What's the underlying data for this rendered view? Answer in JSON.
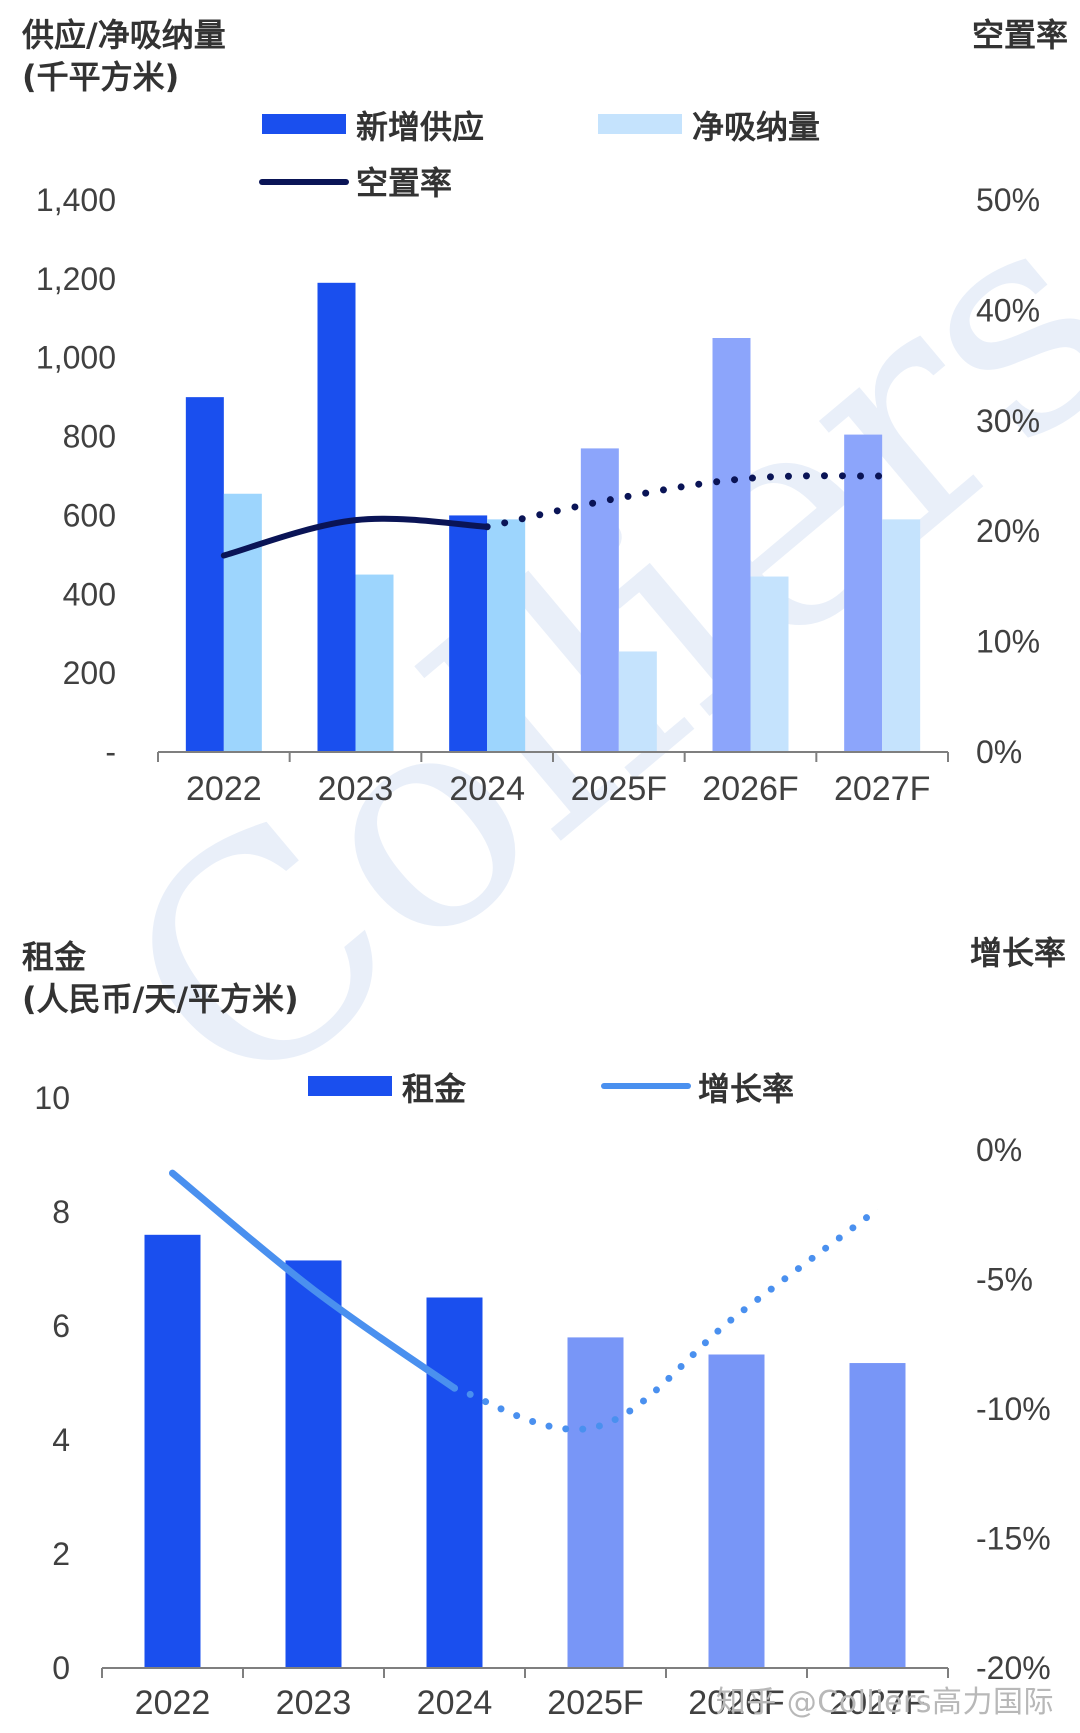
{
  "watermark": {
    "logo_text": "Colliers"
  },
  "credit": "知乎 @Colliers高力国际",
  "colors": {
    "actual_dark": "#1a4fee",
    "forecast_dark": "#8ca5fb",
    "absorb_actual": "#9dd5fd",
    "absorb_forecast": "#c5e3fd",
    "rent_actual": "#1a4fee",
    "rent_forecast": "#7896f7",
    "vacancy_line": "#0a1456",
    "growth_line": "#4a90ef",
    "axis": "#7f7f7f",
    "text": "#404040"
  },
  "chart_data": [
    {
      "type": "bar",
      "y_title_lines": [
        "供应/净吸纳量",
        "(千平方米)"
      ],
      "y2_title": "空置率",
      "categories": [
        "2022",
        "2023",
        "2024",
        "2025F",
        "2026F",
        "2027F"
      ],
      "forecast_from_index": 3,
      "ylim": [
        0,
        1400
      ],
      "yticks": [
        0,
        200,
        400,
        600,
        800,
        1000,
        1200,
        1400
      ],
      "ytick_labels": [
        "-",
        "200",
        "400",
        "600",
        "800",
        "1,000",
        "1,200",
        "1,400"
      ],
      "y2lim": [
        0,
        50
      ],
      "y2ticks": [
        0,
        10,
        20,
        30,
        40,
        50
      ],
      "y2tick_labels": [
        "0%",
        "10%",
        "20%",
        "30%",
        "40%",
        "50%"
      ],
      "legend": [
        "新增供应",
        "净吸纳量",
        "空置率"
      ],
      "series": [
        {
          "name": "新增供应",
          "kind": "bar",
          "values": [
            900,
            1190,
            600,
            770,
            1050,
            805
          ]
        },
        {
          "name": "净吸纳量",
          "kind": "bar",
          "values": [
            655,
            450,
            590,
            255,
            445,
            590
          ]
        },
        {
          "name": "空置率",
          "kind": "line",
          "axis": "right",
          "unit": "%",
          "values": [
            17.8,
            21.0,
            20.4,
            23.0,
            24.8,
            25.0
          ]
        }
      ]
    },
    {
      "type": "bar",
      "y_title_lines": [
        "租金",
        "(人民币/天/平方米)"
      ],
      "y2_title": "增长率",
      "categories": [
        "2022",
        "2023",
        "2024",
        "2025F",
        "2026F",
        "2027F"
      ],
      "forecast_from_index": 3,
      "ylim": [
        0,
        10
      ],
      "yticks": [
        0,
        2,
        4,
        6,
        8,
        10
      ],
      "ytick_labels": [
        "0",
        "2",
        "4",
        "6",
        "8",
        "10"
      ],
      "y2lim": [
        -20,
        2
      ],
      "y2ticks": [
        -20,
        -15,
        -10,
        -5,
        0
      ],
      "y2tick_labels": [
        "-20%",
        "-15%",
        "-10%",
        "-5%",
        "0%"
      ],
      "legend": [
        "租金",
        "增长率"
      ],
      "series": [
        {
          "name": "租金",
          "kind": "bar",
          "values": [
            7.6,
            7.15,
            6.5,
            5.8,
            5.5,
            5.35
          ]
        },
        {
          "name": "增长率",
          "kind": "line",
          "axis": "right",
          "unit": "%",
          "values": [
            -0.9,
            -5.4,
            -9.2,
            -10.7,
            -6.4,
            -2.3
          ]
        }
      ]
    }
  ]
}
